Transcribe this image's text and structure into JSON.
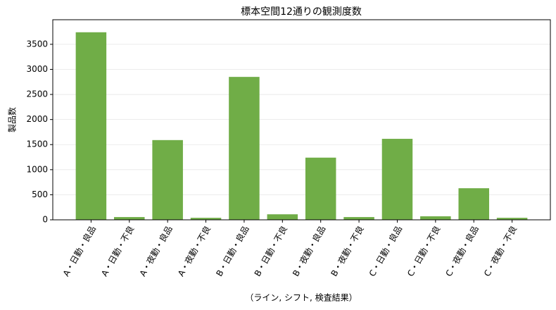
{
  "chart_data": {
    "type": "bar",
    "title": "標本空間12通りの観測度数",
    "x_label": "（ライン, シフト, 検査結果）",
    "y_label": "製品数",
    "categories": [
      "A・日勤・良品",
      "A・日勤・不良",
      "A・夜勤・良品",
      "A・夜勤・不良",
      "B・日勤・良品",
      "B・日勤・不良",
      "B・夜勤・良品",
      "B・夜勤・不良",
      "C・日勤・良品",
      "C・日勤・不良",
      "C・夜勤・良品",
      "C・夜勤・不良"
    ],
    "values": [
      3740,
      55,
      1590,
      40,
      2850,
      110,
      1240,
      55,
      1615,
      70,
      630,
      40
    ],
    "color": "#70ad47",
    "ylim": [
      0,
      3990
    ],
    "yticks": [
      0,
      500,
      1000,
      1500,
      2000,
      2500,
      3000,
      3500
    ],
    "grid": true
  }
}
